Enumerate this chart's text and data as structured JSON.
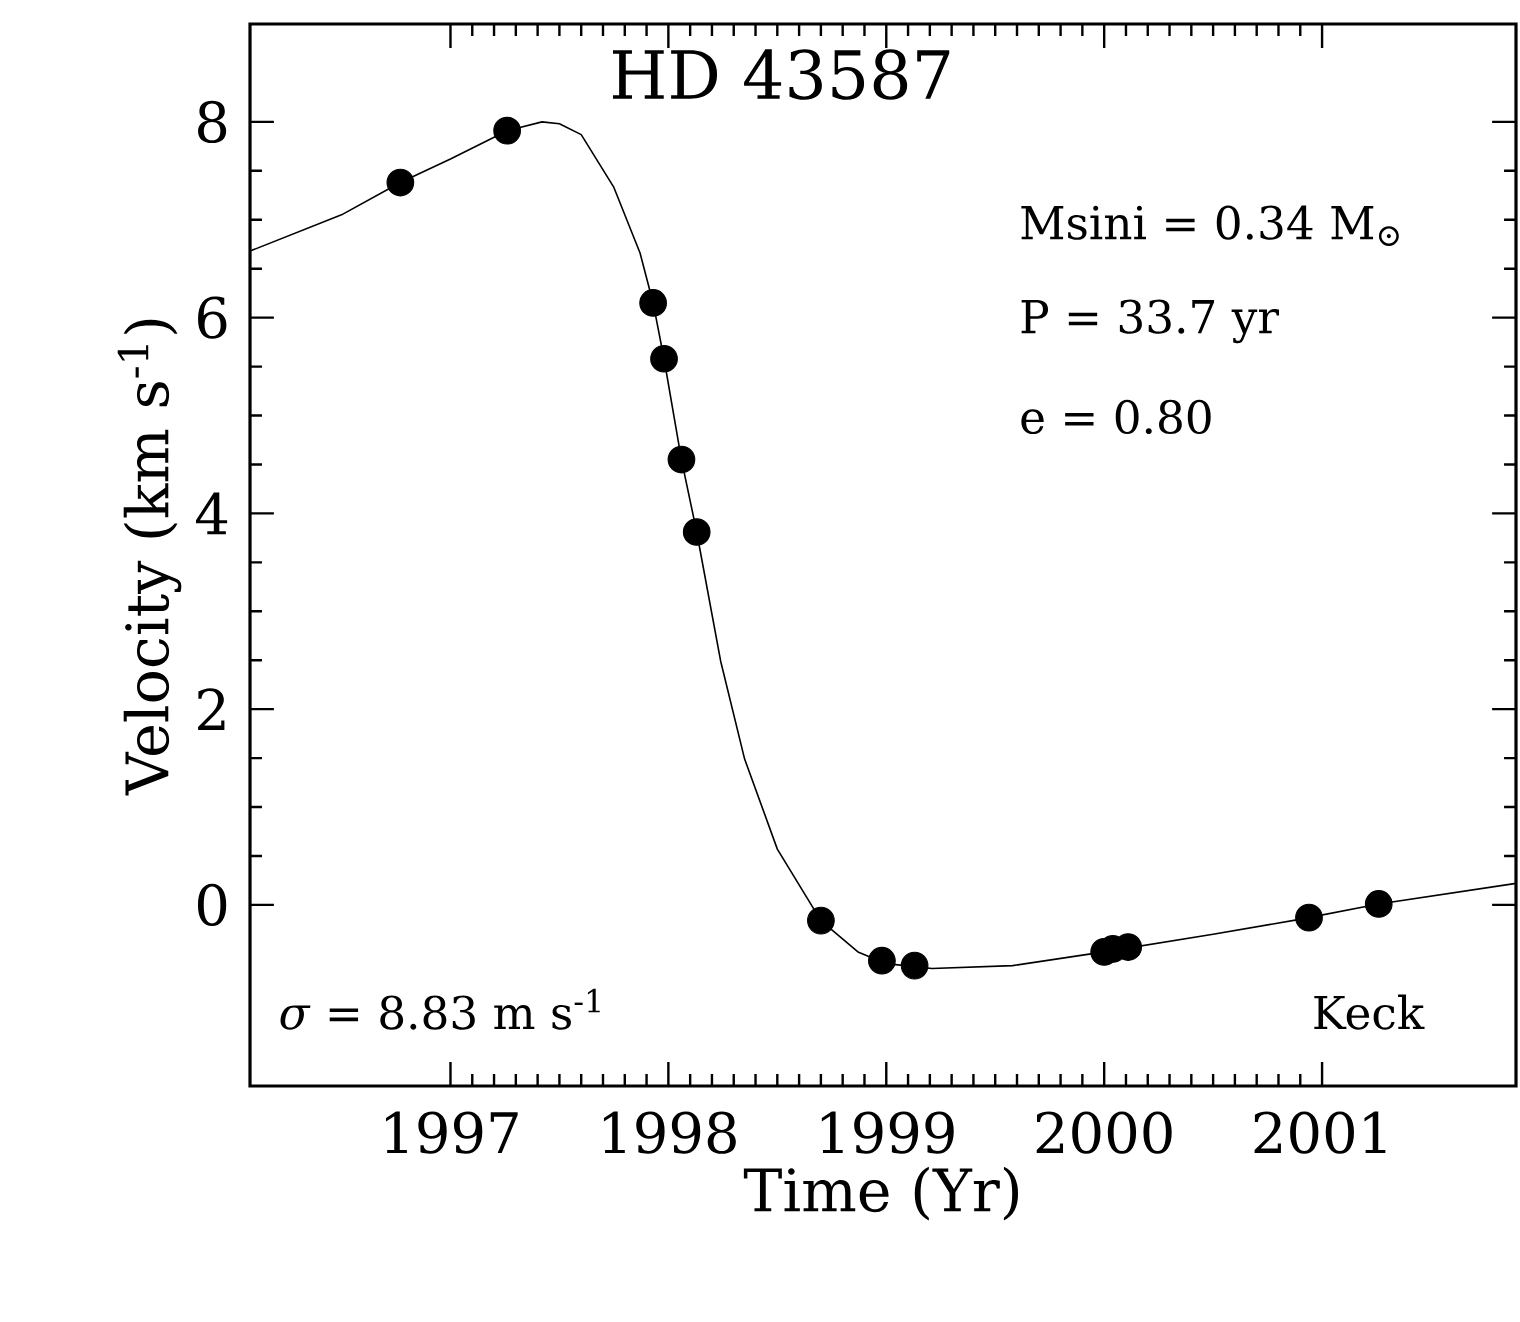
{
  "chart_data": {
    "type": "scatter",
    "title": "HD 43587",
    "xlabel": "Time (Yr)",
    "ylabel": "Velocity (km s$^{-1}$)",
    "xlim": [
      1996.08,
      2001.89
    ],
    "ylim": [
      -1.85,
      9.0
    ],
    "xticks": [
      1997,
      1998,
      1999,
      2000,
      2001
    ],
    "yticks": [
      0,
      2,
      4,
      6,
      8
    ],
    "grid": false,
    "annotations": [
      "Msini = 0.34 M$_{⊙}$",
      "P = 33.7 yr",
      "e = 0.80",
      "*σ* = 8.83 m s$^{-1}$",
      "Keck"
    ],
    "series": [
      {
        "type": "scatter",
        "color": "#000000",
        "marker": "circle",
        "x": [
          1996.77,
          1997.26,
          1997.93,
          1997.98,
          1998.06,
          1998.13,
          1998.7,
          1998.98,
          1999.13,
          2000.0,
          2000.04,
          2000.11,
          2000.94,
          2001.26
        ],
        "values": [
          7.38,
          7.91,
          6.15,
          5.58,
          4.55,
          3.81,
          -0.16,
          -0.57,
          -0.62,
          -0.48,
          -0.45,
          -0.43,
          -0.13,
          0.01
        ]
      },
      {
        "type": "line",
        "color": "#000000",
        "marker": "none",
        "line_style": "solid",
        "x": [
          1996.08,
          1996.5,
          1996.77,
          1997.0,
          1997.26,
          1997.42,
          1997.5,
          1997.6,
          1997.75,
          1997.87,
          1997.93,
          1997.98,
          1998.06,
          1998.13,
          1998.24,
          1998.35,
          1998.5,
          1998.7,
          1998.87,
          1999.0,
          1999.21,
          1999.58,
          2000.0,
          2000.5,
          2000.89,
          2001.26,
          2001.89
        ],
        "values": [
          6.68,
          7.05,
          7.38,
          7.62,
          7.91,
          8.0,
          7.98,
          7.87,
          7.33,
          6.66,
          6.15,
          5.58,
          4.55,
          3.81,
          2.49,
          1.49,
          0.57,
          -0.16,
          -0.48,
          -0.6,
          -0.65,
          -0.62,
          -0.48,
          -0.3,
          -0.15,
          0.01,
          0.22
        ]
      }
    ]
  }
}
